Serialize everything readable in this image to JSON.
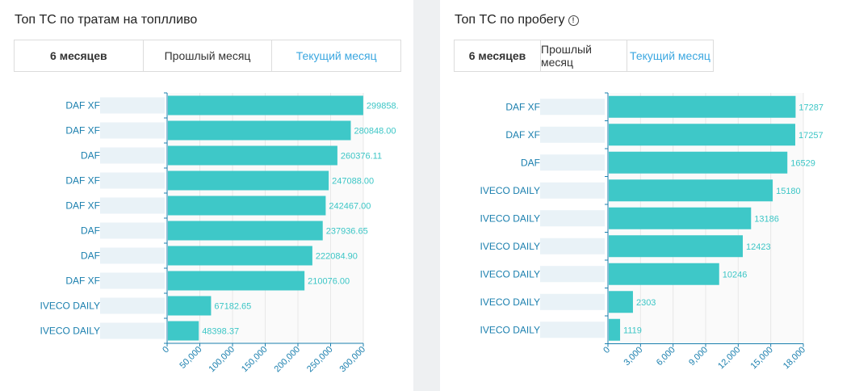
{
  "fuel": {
    "title": "Топ ТС по тратам на топлливо",
    "tabs": [
      {
        "label": "6 месяцев",
        "active": false
      },
      {
        "label": "Прошлый месяц",
        "active": false
      },
      {
        "label": "Текущий месяц",
        "active": true
      }
    ]
  },
  "mileage": {
    "title": "Топ ТС по пробегу",
    "info_icon": "info-circle-icon",
    "tabs": [
      {
        "label": "6 месяцев",
        "active": false
      },
      {
        "label": "Прошлый месяц",
        "active": false
      },
      {
        "label": "Текущий месяц",
        "active": true
      }
    ]
  },
  "chart_data": [
    {
      "type": "bar",
      "orientation": "horizontal",
      "categories": [
        "DAF XF",
        "DAF XF",
        "DAF",
        "DAF XF",
        "DAF XF",
        "DAF",
        "DAF",
        "DAF XF",
        "IVECO DAILY",
        "IVECO DAILY"
      ],
      "values": [
        299858,
        280848,
        260376.11,
        247088,
        242467,
        237936.65,
        222084.9,
        210076,
        67182.65,
        48398.37
      ],
      "value_labels": [
        "299858.",
        "280848.00",
        "260376.11",
        "247088.00",
        "242467.00",
        "237936.65",
        "222084.90",
        "210076.00",
        "67182.65",
        "48398.37"
      ],
      "xticks": [
        0,
        50000,
        100000,
        150000,
        200000,
        250000,
        300000
      ],
      "xtick_labels": [
        "0",
        "50,000",
        "100,000",
        "150,000",
        "200,000",
        "250,000",
        "300,000"
      ],
      "xlim": [
        0,
        300000
      ],
      "color": "#3ec8c8",
      "grid": true
    },
    {
      "type": "bar",
      "orientation": "horizontal",
      "categories": [
        "DAF XF",
        "DAF XF",
        "DAF",
        "IVECO DAILY",
        "IVECO DAILY",
        "IVECO DAILY",
        "IVECO DAILY",
        "IVECO DAILY",
        "IVECO DAILY"
      ],
      "values": [
        17287,
        17257,
        16529,
        15180,
        13186,
        12423,
        10246,
        2303,
        1119
      ],
      "value_labels": [
        "17287",
        "17257",
        "16529",
        "15180",
        "13186",
        "12423",
        "10246",
        "2303",
        "1119"
      ],
      "xticks": [
        0,
        3000,
        6000,
        9000,
        12000,
        15000,
        18000
      ],
      "xtick_labels": [
        "0",
        "3,000",
        "6,000",
        "9,000",
        "12,000",
        "15,000",
        "18,000"
      ],
      "xlim": [
        0,
        18000
      ],
      "color": "#3ec8c8",
      "grid": true
    }
  ]
}
